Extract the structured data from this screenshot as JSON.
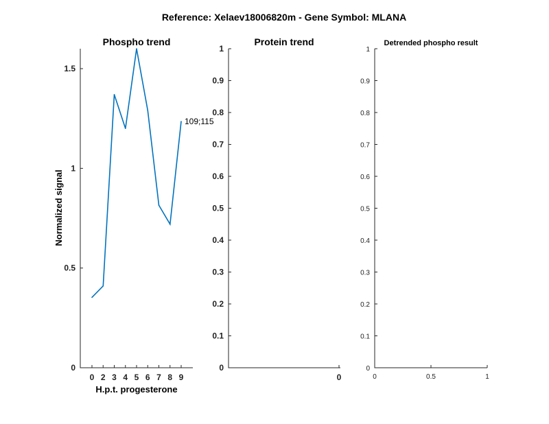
{
  "figure": {
    "title": "Reference:  Xelaev18006820m - Gene Symbol:  MLANA"
  },
  "chart_data": [
    {
      "type": "line",
      "title": "Phospho trend",
      "xlabel": "H.p.t. progesterone",
      "ylabel": "Normalized signal",
      "categories": [
        "0",
        "2",
        "3",
        "4",
        "5",
        "6",
        "7",
        "8",
        "9"
      ],
      "series": [
        {
          "values": [
            0.353,
            0.41,
            1.37,
            1.2,
            1.6,
            1.29,
            0.815,
            0.72,
            1.235
          ],
          "end_label": "109;115",
          "color": "#0072BD"
        }
      ],
      "ylim": [
        0,
        1.6
      ],
      "yticks": [
        0,
        0.5,
        1,
        1.5
      ],
      "ytick_labels": [
        "0",
        "0.5",
        "1",
        "1.5"
      ],
      "grid": false
    },
    {
      "type": "line",
      "title": "Protein trend",
      "xticks": [
        0
      ],
      "xtick_labels": [
        "0"
      ],
      "ylim": [
        0,
        1
      ],
      "yticks": [
        0,
        0.1,
        0.2,
        0.3,
        0.4,
        0.5,
        0.6,
        0.7,
        0.8,
        0.9,
        1
      ],
      "ytick_labels": [
        "0",
        "0.1",
        "0.2",
        "0.3",
        "0.4",
        "0.5",
        "0.6",
        "0.7",
        "0.8",
        "0.9",
        "1"
      ],
      "series": [],
      "grid": false
    },
    {
      "type": "line",
      "title": "Detrended phospho result",
      "xlim": [
        0,
        1
      ],
      "xticks": [
        0,
        0.5,
        1
      ],
      "xtick_labels": [
        "0",
        "0.5",
        "1"
      ],
      "ylim": [
        0,
        1
      ],
      "yticks": [
        0,
        0.1,
        0.2,
        0.3,
        0.4,
        0.5,
        0.6,
        0.7,
        0.8,
        0.9,
        1
      ],
      "ytick_labels": [
        "0",
        "0.1",
        "0.2",
        "0.3",
        "0.4",
        "0.5",
        "0.6",
        "0.7",
        "0.8",
        "0.9",
        "1"
      ],
      "series": [],
      "grid": false
    }
  ]
}
